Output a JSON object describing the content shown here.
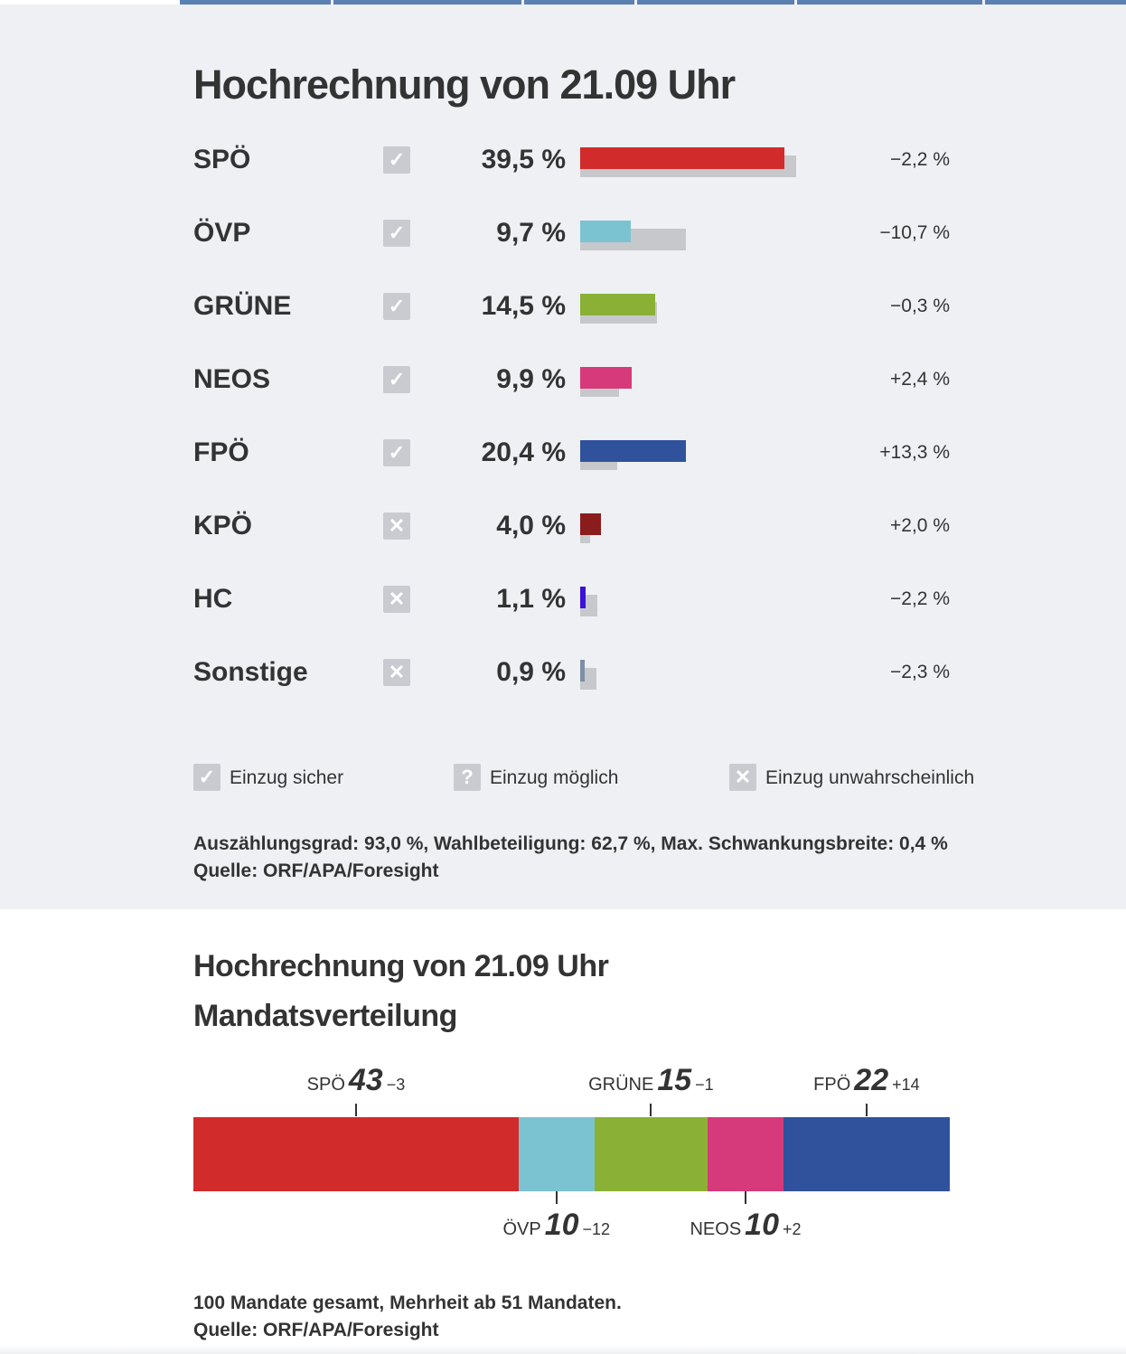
{
  "colors": {
    "SPÖ": "#d22b2b",
    "ÖVP": "#7cc3d2",
    "GRÜNE": "#8ab135",
    "NEOS": "#d63a7a",
    "FPÖ": "#30529c",
    "KPÖ": "#8b1c1c",
    "HC": "#3a10d8",
    "Sonstige": "#7d8ea6",
    "previous": "#c7c8cc"
  },
  "chart_data": [
    {
      "type": "bar",
      "title": "Hochrechnung von 21.09 Uhr",
      "categories": [
        "SPÖ",
        "ÖVP",
        "GRÜNE",
        "NEOS",
        "FPÖ",
        "KPÖ",
        "HC",
        "Sonstige"
      ],
      "series": [
        {
          "name": "",
          "values": [
            39.5,
            9.7,
            14.5,
            9.9,
            20.4,
            4.0,
            1.1,
            0.9
          ]
        },
        {
          "name": "",
          "values": [
            41.7,
            20.4,
            14.8,
            7.5,
            7.1,
            2.0,
            3.3,
            3.2
          ]
        }
      ],
      "value_labels": [
        "39,5 %",
        "9,7 %",
        "14,5 %",
        "9,9 %",
        "20,4 %",
        "4,0 %",
        "1,1 %",
        "0,9 %"
      ],
      "diff_labels": [
        "−2,2 %",
        "−10,7 %",
        "−0,3 %",
        "+2,4 %",
        "+13,3 %",
        "+2,0 %",
        "−2,2 %",
        "−2,3 %"
      ],
      "status": [
        "sicher",
        "sicher",
        "sicher",
        "sicher",
        "sicher",
        "unwahrscheinlich",
        "unwahrscheinlich",
        "unwahrscheinlich"
      ],
      "xlim": [
        0,
        42
      ]
    },
    {
      "type": "bar",
      "title": "Hochrechnung von 21.09 Uhr",
      "subtitle": "Mandatsverteilung",
      "stacked": true,
      "categories": [
        "SPÖ",
        "ÖVP",
        "GRÜNE",
        "NEOS",
        "FPÖ"
      ],
      "values": [
        43,
        10,
        15,
        10,
        22
      ],
      "diff_labels": [
        "−3",
        "−12",
        "−1",
        "+2",
        "+14"
      ],
      "label_position": [
        "top",
        "bottom",
        "top",
        "bottom",
        "top"
      ],
      "total": 100
    }
  ],
  "legend": [
    {
      "icon": "check-icon",
      "glyph": "✓",
      "label": "Einzug sicher"
    },
    {
      "icon": "question-icon",
      "glyph": "?",
      "label": "Einzug möglich"
    },
    {
      "icon": "cross-icon",
      "glyph": "✕",
      "label": "Einzug unwahrscheinlich"
    }
  ],
  "notes1": {
    "line1": "Auszählungsgrad: 93,0 %, Wahlbeteiligung: 62,7 %, Max. Schwankungsbreite: 0,4 %",
    "line2": "Quelle: ORF/APA/Foresight"
  },
  "notes2": {
    "line1": "100 Mandate gesamt, Mehrheit ab 51 Mandaten.",
    "line2": "Quelle: ORF/APA/Foresight"
  }
}
